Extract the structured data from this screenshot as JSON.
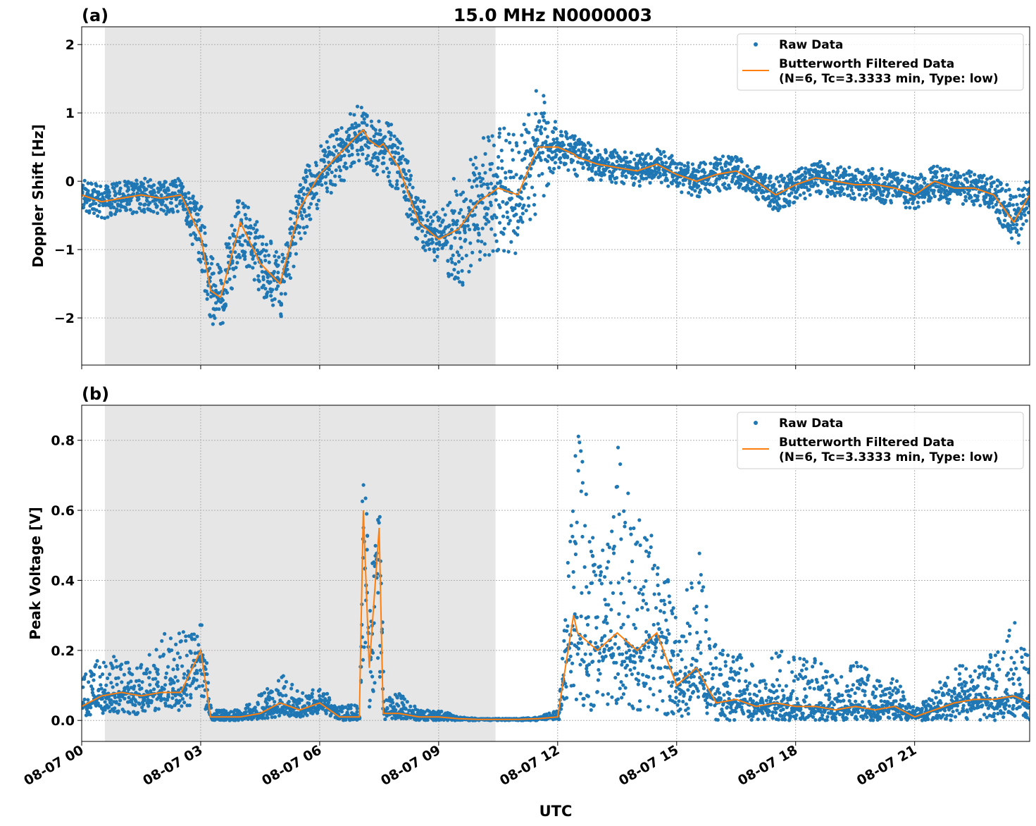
{
  "title": "15.0 MHz N0000003",
  "xlabel": "UTC",
  "colors": {
    "raw": "#1f77b4",
    "filtered": "#ff7f0e",
    "shade": "#e6e6e6"
  },
  "chart_data": [
    {
      "type": "scatter+line",
      "panel_label": "(a)",
      "ylabel": "Doppler Shift [Hz]",
      "ylim": [
        -2.69,
        2.26
      ],
      "yticks": [
        -2,
        -1,
        0,
        1,
        2
      ],
      "ytick_labels": [
        "−2",
        "−1",
        "0",
        "1",
        "2"
      ],
      "grid": true,
      "legend": {
        "placement": "top-right",
        "raw": "Raw Data",
        "filtered_line1": "Butterworth Filtered Data",
        "filtered_line2": "(N=6, Tc=3.3333 min, Type: low)"
      },
      "shaded_span": [
        "08-07 00:35",
        "08-07 10:26"
      ],
      "filtered": [
        -0.2,
        -0.3,
        -0.25,
        -0.2,
        -0.25,
        -0.2,
        -0.8,
        -1.6,
        -1.7,
        -0.6,
        -1.2,
        -1.5,
        -0.4,
        0.1,
        0.4,
        0.7,
        0.75,
        0.6,
        0.5,
        0.55,
        0.2,
        -0.6,
        -0.85,
        -0.7,
        -0.3,
        -0.1,
        -0.2,
        0.5,
        0.5,
        0.4,
        0.35,
        0.25,
        0.2,
        0.15,
        0.25,
        0.1,
        0.0,
        0.1,
        0.15,
        0.0,
        -0.2,
        -0.05,
        0.05,
        0.0,
        -0.05,
        -0.05,
        -0.1,
        -0.2,
        0.0,
        -0.1,
        -0.1,
        -0.2,
        -0.6,
        -0.2
      ],
      "raw_min": [
        -0.45,
        -0.55,
        -0.5,
        -0.45,
        -0.5,
        -0.45,
        -1.3,
        -2.1,
        -2.2,
        -1.1,
        -1.7,
        -2.0,
        -0.9,
        -0.35,
        -0.05,
        0.25,
        0.3,
        0.15,
        0.05,
        0.1,
        -0.25,
        -1.0,
        -1.25,
        -1.6,
        -1.2,
        -1.0,
        -1.1,
        -0.4,
        0.2,
        0.1,
        0.05,
        0.0,
        -0.05,
        -0.1,
        0.0,
        -0.15,
        -0.25,
        -0.15,
        -0.1,
        -0.25,
        -0.45,
        -0.3,
        -0.2,
        -0.25,
        -0.3,
        -0.3,
        -0.35,
        -0.45,
        -0.25,
        -0.35,
        -0.35,
        -0.45,
        -1.1,
        -0.45
      ],
      "raw_max": [
        0.05,
        -0.05,
        0.0,
        0.05,
        0.0,
        0.05,
        -0.3,
        -1.1,
        -1.2,
        -0.1,
        -0.7,
        -1.0,
        0.1,
        0.55,
        0.85,
        1.15,
        1.2,
        1.05,
        0.95,
        1.0,
        0.65,
        -0.2,
        -0.45,
        0.2,
        0.6,
        0.8,
        0.7,
        1.4,
        0.8,
        0.7,
        0.65,
        0.5,
        0.45,
        0.4,
        0.5,
        0.35,
        0.25,
        0.35,
        0.4,
        0.25,
        0.05,
        0.2,
        0.3,
        0.25,
        0.2,
        0.2,
        0.15,
        0.05,
        0.25,
        0.15,
        0.15,
        0.05,
        -0.1,
        0.05
      ]
    },
    {
      "type": "scatter+line",
      "panel_label": "(b)",
      "ylabel": "Peak Voltage [V]",
      "ylim": [
        -0.06,
        0.9
      ],
      "yticks": [
        0,
        0.2,
        0.4,
        0.6,
        0.8
      ],
      "ytick_labels": [
        "0.0",
        "0.2",
        "0.4",
        "0.6",
        "0.8"
      ],
      "grid": true,
      "legend": {
        "placement": "top-right",
        "raw": "Raw Data",
        "filtered_line1": "Butterworth Filtered Data",
        "filtered_line2": "(N=6, Tc=3.3333 min, Type: low)"
      },
      "shaded_span": [
        "08-07 00:35",
        "08-07 10:26"
      ],
      "filtered": [
        0.04,
        0.07,
        0.08,
        0.07,
        0.08,
        0.08,
        0.2,
        0.01,
        0.01,
        0.01,
        0.02,
        0.05,
        0.03,
        0.05,
        0.01,
        0.01,
        0.6,
        0.15,
        0.55,
        0.02,
        0.02,
        0.01,
        0.01,
        0.005,
        0.003,
        0.003,
        0.003,
        0.005,
        0.01,
        0.3,
        0.25,
        0.2,
        0.25,
        0.2,
        0.25,
        0.1,
        0.15,
        0.05,
        0.06,
        0.04,
        0.05,
        0.04,
        0.04,
        0.03,
        0.04,
        0.03,
        0.04,
        0.01,
        0.03,
        0.05,
        0.06,
        0.06,
        0.07,
        0.05
      ],
      "raw_min": [
        0.01,
        0.02,
        0.02,
        0.01,
        0.02,
        0.02,
        0.05,
        0.0,
        0.0,
        0.0,
        0.005,
        0.01,
        0.01,
        0.02,
        0.0,
        0.0,
        0.2,
        0.02,
        0.1,
        0.0,
        0.005,
        0.0,
        0.0,
        0.0,
        0.0,
        0.0,
        0.0,
        0.0,
        0.0,
        0.05,
        0.05,
        0.02,
        0.05,
        0.03,
        0.02,
        0.01,
        0.01,
        0.0,
        0.0,
        0.0,
        0.0,
        0.0,
        0.0,
        0.0,
        0.0,
        0.0,
        0.0,
        0.0,
        0.0,
        0.0,
        0.0,
        0.0,
        0.01,
        0.0
      ],
      "raw_max": [
        0.15,
        0.2,
        0.17,
        0.16,
        0.25,
        0.25,
        0.32,
        0.03,
        0.03,
        0.03,
        0.08,
        0.14,
        0.08,
        0.1,
        0.04,
        0.05,
        0.85,
        0.4,
        0.7,
        0.06,
        0.08,
        0.03,
        0.03,
        0.01,
        0.005,
        0.005,
        0.005,
        0.01,
        0.03,
        0.73,
        0.83,
        0.45,
        0.79,
        0.6,
        0.55,
        0.28,
        0.53,
        0.2,
        0.2,
        0.15,
        0.2,
        0.2,
        0.19,
        0.12,
        0.18,
        0.12,
        0.12,
        0.03,
        0.1,
        0.15,
        0.18,
        0.2,
        0.3,
        0.2
      ]
    }
  ],
  "x": [
    "08-07 00:00",
    "08-07 00:30",
    "08-07 01:00",
    "08-07 01:30",
    "08-07 02:00",
    "08-07 02:30",
    "08-07 03:00",
    "08-07 03:15",
    "08-07 03:30",
    "08-07 04:00",
    "08-07 04:30",
    "08-07 05:00",
    "08-07 05:30",
    "08-07 06:00",
    "08-07 06:30",
    "08-07 07:00",
    "08-07 07:06",
    "08-07 07:15",
    "08-07 07:30",
    "08-07 07:36",
    "08-07 08:00",
    "08-07 08:30",
    "08-07 09:00",
    "08-07 09:30",
    "08-07 10:00",
    "08-07 10:30",
    "08-07 11:00",
    "08-07 11:30",
    "08-07 12:00",
    "08-07 12:24",
    "08-07 12:30",
    "08-07 13:00",
    "08-07 13:30",
    "08-07 14:00",
    "08-07 14:30",
    "08-07 15:00",
    "08-07 15:30",
    "08-07 16:00",
    "08-07 16:30",
    "08-07 17:00",
    "08-07 17:30",
    "08-07 18:00",
    "08-07 18:30",
    "08-07 19:00",
    "08-07 19:30",
    "08-07 20:00",
    "08-07 20:30",
    "08-07 21:00",
    "08-07 21:30",
    "08-07 22:00",
    "08-07 22:30",
    "08-07 23:00",
    "08-07 23:30",
    "08-07 23:54"
  ],
  "xlim": [
    "08-07 00:00",
    "08-07 23:54"
  ],
  "xtick_labels": [
    "08-07 00",
    "08-07 03",
    "08-07 06",
    "08-07 09",
    "08-07 12",
    "08-07 15",
    "08-07 18",
    "08-07 21"
  ]
}
